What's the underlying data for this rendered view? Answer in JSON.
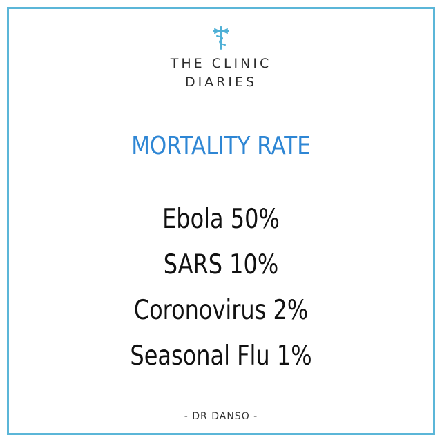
{
  "brand": {
    "line1": "THE CLINIC",
    "line2": "DIARIES",
    "logo_icon": "caduceus-icon"
  },
  "heading": "MORTALITY RATE",
  "rates": [
    {
      "text": "Ebola 50%"
    },
    {
      "text": "SARS 10%"
    },
    {
      "text": "Coronovirus 2%"
    },
    {
      "text": "Seasonal Flu 1%"
    }
  ],
  "author": "- DR DANSO -",
  "colors": {
    "frame": "#5bb6d8",
    "heading": "#2e86d4",
    "logo": "#4fb0d6",
    "text": "#111111"
  }
}
